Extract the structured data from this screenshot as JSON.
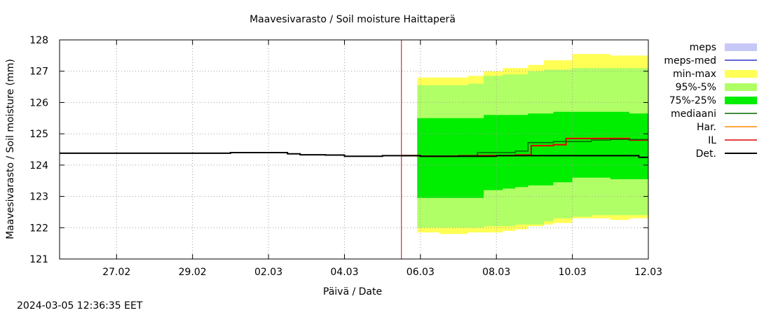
{
  "footer_timestamp": "2024-03-05 12:36:35 EET",
  "colors": {
    "meps": "#c8c8f8",
    "meps_med": "#3333cc",
    "min_max": "#ffff55",
    "p95_5": "#b0ff66",
    "p75_25": "#00ee00",
    "median": "#006600",
    "har": "#ff8800",
    "il": "#dd0000",
    "det": "#000000",
    "forecast_line": "#cc0000"
  },
  "chart_data": {
    "type": "area",
    "title": "Maavesivarasto / Soil moisture   Haittaperä",
    "xlabel": "Päivä / Date",
    "ylabel": "Maavesivarasto / Soil moisture (mm)",
    "xlim": [
      "2024-02-25T12:00",
      "2024-03-12T00:00"
    ],
    "ylim": [
      121,
      128
    ],
    "yticks": [
      121,
      122,
      123,
      124,
      125,
      126,
      127,
      128
    ],
    "xticks": [
      {
        "date": "2024-02-27",
        "label": "27.02"
      },
      {
        "date": "2024-02-29",
        "label": "29.02"
      },
      {
        "date": "2024-03-02",
        "label": "02.03"
      },
      {
        "date": "2024-03-04",
        "label": "04.03"
      },
      {
        "date": "2024-03-06",
        "label": "06.03"
      },
      {
        "date": "2024-03-08",
        "label": "08.03"
      },
      {
        "date": "2024-03-10",
        "label": "10.03"
      },
      {
        "date": "2024-03-12",
        "label": "12.03"
      }
    ],
    "grid": true,
    "legend_position": "right",
    "forecast_start": "2024-03-05T12:00",
    "legend": [
      {
        "key": "meps",
        "label": "meps",
        "style": "box"
      },
      {
        "key": "meps_med",
        "label": "meps-med",
        "style": "line"
      },
      {
        "key": "min_max",
        "label": "min-max",
        "style": "box"
      },
      {
        "key": "p95_5",
        "label": "95%-5%",
        "style": "box"
      },
      {
        "key": "p75_25",
        "label": "75%-25%",
        "style": "box"
      },
      {
        "key": "median",
        "label": "mediaani",
        "style": "line"
      },
      {
        "key": "har",
        "label": "Har.",
        "style": "line"
      },
      {
        "key": "il",
        "label": "IL",
        "style": "line"
      },
      {
        "key": "det",
        "label": "Det.",
        "style": "line"
      }
    ],
    "bands": {
      "min_max": {
        "x": [
          "2024-03-05T22:00",
          "2024-03-06T12:00",
          "2024-03-07T06:00",
          "2024-03-07T16:00",
          "2024-03-08T04:00",
          "2024-03-08T12:00",
          "2024-03-08T20:00",
          "2024-03-09T06:00",
          "2024-03-09T12:00",
          "2024-03-10T00:00",
          "2024-03-10T12:00",
          "2024-03-11T00:00",
          "2024-03-11T12:00",
          "2024-03-12T00:00"
        ],
        "upper": [
          126.8,
          126.8,
          126.85,
          127.0,
          127.1,
          127.1,
          127.2,
          127.35,
          127.35,
          127.55,
          127.55,
          127.5,
          127.5,
          127.45
        ],
        "lower": [
          121.85,
          121.8,
          121.85,
          121.85,
          121.9,
          121.95,
          122.05,
          122.1,
          122.15,
          122.3,
          122.3,
          122.25,
          122.3,
          122.25
        ]
      },
      "p95_5": {
        "x": [
          "2024-03-05T22:00",
          "2024-03-06T12:00",
          "2024-03-07T06:00",
          "2024-03-07T16:00",
          "2024-03-08T04:00",
          "2024-03-08T12:00",
          "2024-03-08T20:00",
          "2024-03-09T06:00",
          "2024-03-09T12:00",
          "2024-03-10T00:00",
          "2024-03-10T12:00",
          "2024-03-11T00:00",
          "2024-03-11T12:00",
          "2024-03-12T00:00"
        ],
        "upper": [
          126.55,
          126.55,
          126.6,
          126.85,
          126.9,
          126.9,
          127.0,
          127.05,
          127.05,
          127.1,
          127.1,
          127.1,
          127.1,
          127.1
        ],
        "lower": [
          122.0,
          122.0,
          122.0,
          122.05,
          122.05,
          122.1,
          122.1,
          122.2,
          122.3,
          122.35,
          122.4,
          122.4,
          122.4,
          122.4
        ]
      },
      "p75_25": {
        "x": [
          "2024-03-05T22:00",
          "2024-03-06T12:00",
          "2024-03-07T06:00",
          "2024-03-07T16:00",
          "2024-03-08T04:00",
          "2024-03-08T12:00",
          "2024-03-08T20:00",
          "2024-03-09T06:00",
          "2024-03-09T12:00",
          "2024-03-10T00:00",
          "2024-03-10T12:00",
          "2024-03-11T00:00",
          "2024-03-11T12:00",
          "2024-03-12T00:00"
        ],
        "upper": [
          125.5,
          125.5,
          125.5,
          125.6,
          125.6,
          125.6,
          125.65,
          125.65,
          125.7,
          125.7,
          125.7,
          125.7,
          125.65,
          125.65
        ],
        "lower": [
          122.95,
          122.95,
          122.95,
          123.2,
          123.25,
          123.3,
          123.35,
          123.35,
          123.45,
          123.6,
          123.6,
          123.55,
          123.55,
          123.55
        ]
      }
    },
    "series": [
      {
        "key": "det",
        "x": [
          "2024-02-25T12:00",
          "2024-02-29T00:00",
          "2024-03-01T00:00",
          "2024-03-01T12:00",
          "2024-03-02T12:00",
          "2024-03-02T20:00",
          "2024-03-03T12:00",
          "2024-03-04T00:00",
          "2024-03-04T12:00",
          "2024-03-05T00:00",
          "2024-03-05T12:00",
          "2024-03-06T00:00",
          "2024-03-07T00:00",
          "2024-03-08T00:00",
          "2024-03-09T00:00",
          "2024-03-10T00:00",
          "2024-03-11T00:00",
          "2024-03-11T18:00",
          "2024-03-12T00:00"
        ],
        "y": [
          124.38,
          124.38,
          124.4,
          124.4,
          124.36,
          124.33,
          124.32,
          124.28,
          124.28,
          124.3,
          124.3,
          124.28,
          124.28,
          124.3,
          124.3,
          124.3,
          124.3,
          124.25,
          124.25
        ]
      },
      {
        "key": "median",
        "x": [
          "2024-03-05T12:00",
          "2024-03-06T00:00",
          "2024-03-07T00:00",
          "2024-03-07T12:00",
          "2024-03-08T12:00",
          "2024-03-08T20:00",
          "2024-03-09T12:00",
          "2024-03-10T00:00",
          "2024-03-10T12:00",
          "2024-03-11T00:00",
          "2024-03-11T12:00",
          "2024-03-12T00:00"
        ],
        "y": [
          124.3,
          124.28,
          124.3,
          124.4,
          124.45,
          124.72,
          124.75,
          124.75,
          124.8,
          124.82,
          124.82,
          124.82
        ]
      },
      {
        "key": "il",
        "x": [
          "2024-03-05T12:00",
          "2024-03-06T00:00",
          "2024-03-07T00:00",
          "2024-03-08T00:00",
          "2024-03-08T12:00",
          "2024-03-08T22:00",
          "2024-03-09T12:00",
          "2024-03-09T20:00",
          "2024-03-10T04:00",
          "2024-03-10T12:00",
          "2024-03-11T00:00",
          "2024-03-11T12:00",
          "2024-03-12T00:00"
        ],
        "y": [
          124.3,
          124.28,
          124.3,
          124.3,
          124.32,
          124.62,
          124.65,
          124.85,
          124.85,
          124.85,
          124.85,
          124.8,
          124.8
        ]
      },
      {
        "key": "har",
        "x": [
          "2024-03-05T12:00",
          "2024-03-06T00:00",
          "2024-03-07T00:00",
          "2024-03-08T00:00",
          "2024-03-08T12:00",
          "2024-03-08T22:00",
          "2024-03-09T12:00",
          "2024-03-09T20:00",
          "2024-03-10T04:00",
          "2024-03-10T12:00",
          "2024-03-11T00:00",
          "2024-03-11T12:00",
          "2024-03-12T00:00"
        ],
        "y": [
          124.31,
          124.29,
          124.31,
          124.31,
          124.33,
          124.63,
          124.66,
          124.86,
          124.86,
          124.86,
          124.86,
          124.81,
          124.81
        ]
      }
    ]
  }
}
